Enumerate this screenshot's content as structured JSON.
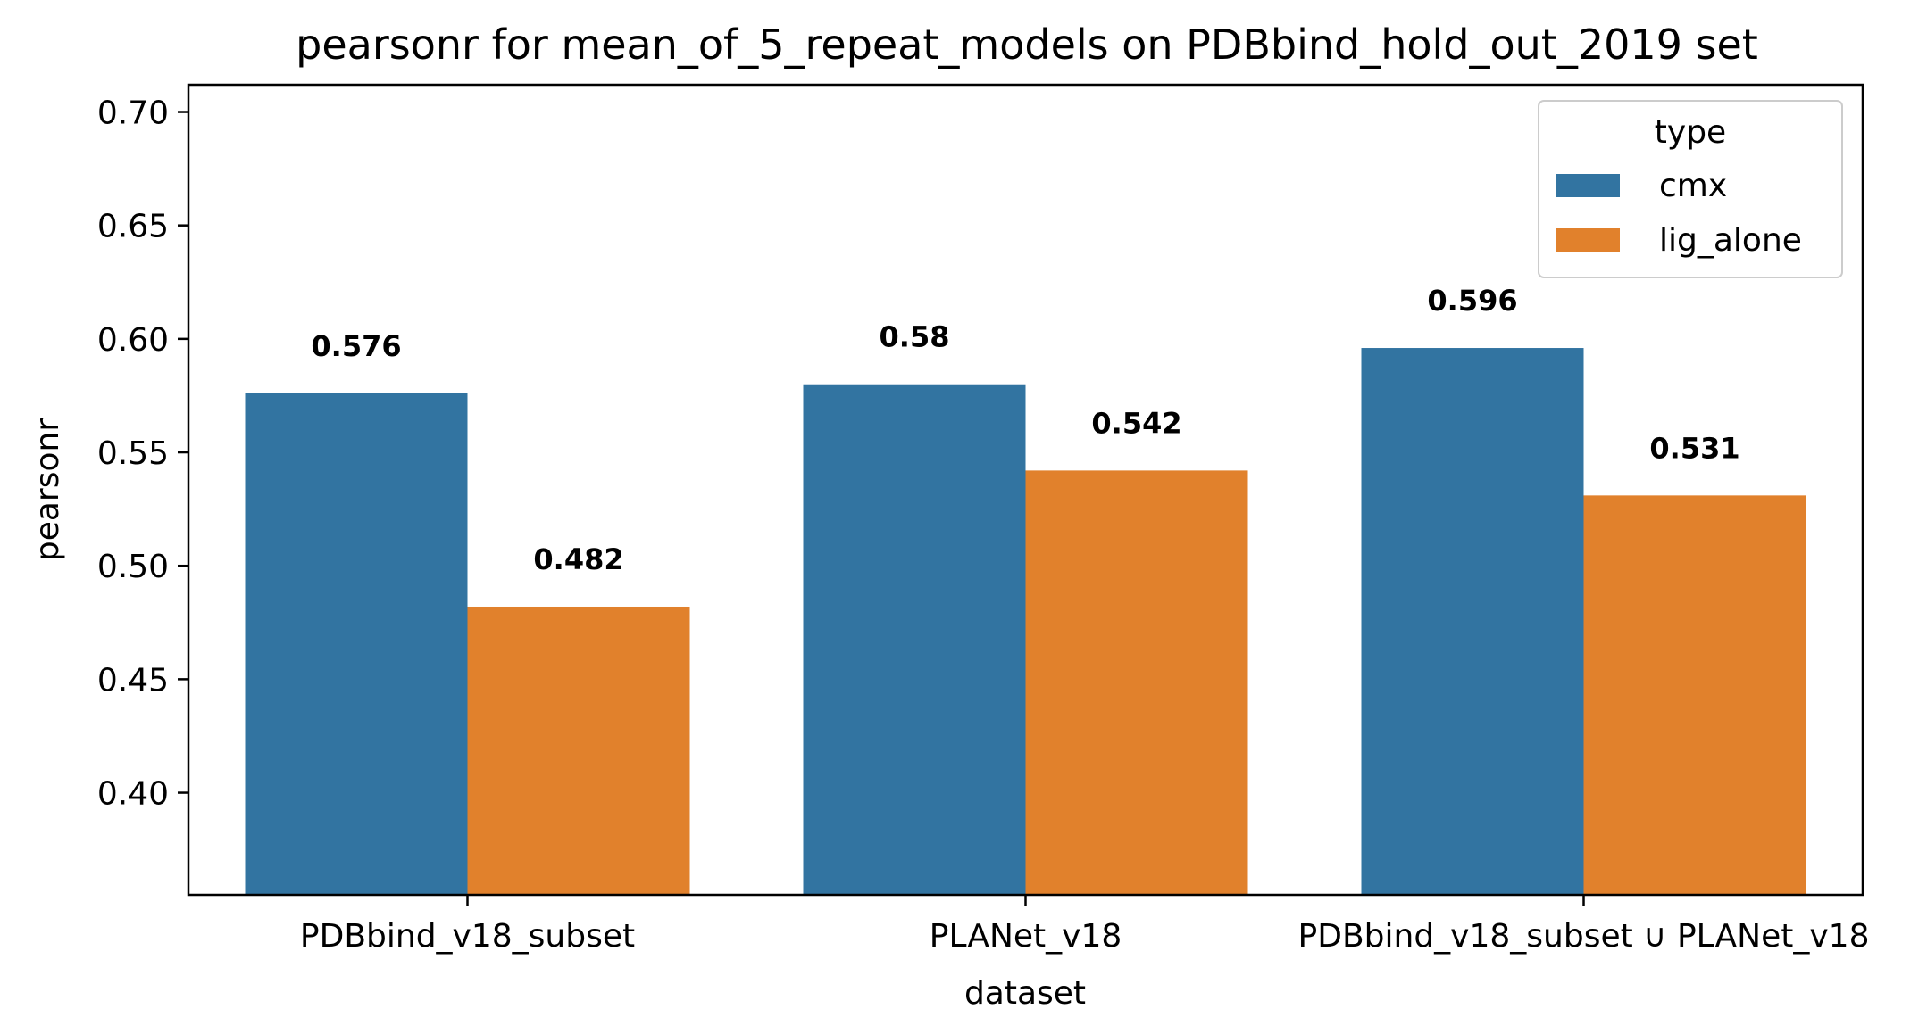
{
  "chart_data": {
    "type": "bar",
    "title": "pearsonr for mean_of_5_repeat_models on PDBbind_hold_out_2019 set",
    "xlabel": "dataset",
    "ylabel": "pearsonr",
    "categories": [
      "PDBbind_v18_subset",
      "PLANet_v18",
      "PDBbind_v18_subset ∪ PLANet_v18"
    ],
    "series": [
      {
        "name": "cmx",
        "color": "#3274a1",
        "values": [
          0.576,
          0.58,
          0.596
        ],
        "labels": [
          "0.576",
          "0.58",
          "0.596"
        ]
      },
      {
        "name": "lig_alone",
        "color": "#e1812c",
        "values": [
          0.482,
          0.542,
          0.531
        ],
        "labels": [
          "0.482",
          "0.542",
          "0.531"
        ]
      }
    ],
    "ylim": [
      0.355,
      0.712
    ],
    "yticks": [
      0.4,
      0.45,
      0.5,
      0.55,
      0.6,
      0.65,
      0.7
    ],
    "ytick_labels": [
      "0.40",
      "0.45",
      "0.50",
      "0.55",
      "0.60",
      "0.65",
      "0.70"
    ],
    "legend": {
      "title": "type",
      "position": "top-right"
    },
    "grid": false
  }
}
